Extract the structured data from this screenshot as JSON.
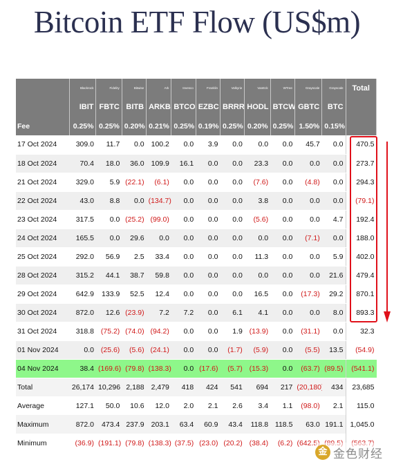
{
  "title": "Bitcoin ETF Flow (US$m)",
  "columns": [
    {
      "issuer": "Blackrock",
      "ticker": "IBIT",
      "fee": "0.25%"
    },
    {
      "issuer": "Fidelity",
      "ticker": "FBTC",
      "fee": "0.25%"
    },
    {
      "issuer": "Bitwise",
      "ticker": "BITB",
      "fee": "0.20%"
    },
    {
      "issuer": "Ark",
      "ticker": "ARKB",
      "fee": "0.21%"
    },
    {
      "issuer": "Invesco",
      "ticker": "BTCO",
      "fee": "0.25%"
    },
    {
      "issuer": "Franklin",
      "ticker": "EZBC",
      "fee": "0.19%"
    },
    {
      "issuer": "Valkyrie",
      "ticker": "BRRR",
      "fee": "0.25%"
    },
    {
      "issuer": "VanEck",
      "ticker": "HODL",
      "fee": "0.20%"
    },
    {
      "issuer": "WTree",
      "ticker": "BTCW",
      "fee": "0.25%"
    },
    {
      "issuer": "Grayscale",
      "ticker": "GBTC",
      "fee": "1.50%"
    },
    {
      "issuer": "Grayscale",
      "ticker": "BTC",
      "fee": "0.15%"
    }
  ],
  "total_header": "Total",
  "fee_label": "Fee",
  "rows": [
    {
      "date": "17 Oct 2024",
      "values": [
        "309.0",
        "11.7",
        "0.0",
        "100.2",
        "0.0",
        "3.9",
        "0.0",
        "0.0",
        "0.0",
        "45.7",
        "0.0"
      ],
      "total": "470.5"
    },
    {
      "date": "18 Oct 2024",
      "values": [
        "70.4",
        "18.0",
        "36.0",
        "109.9",
        "16.1",
        "0.0",
        "0.0",
        "23.3",
        "0.0",
        "0.0",
        "0.0"
      ],
      "total": "273.7"
    },
    {
      "date": "21 Oct 2024",
      "values": [
        "329.0",
        "5.9",
        "(22.1)",
        "(6.1)",
        "0.0",
        "0.0",
        "0.0",
        "(7.6)",
        "0.0",
        "(4.8)",
        "0.0"
      ],
      "total": "294.3"
    },
    {
      "date": "22 Oct 2024",
      "values": [
        "43.0",
        "8.8",
        "0.0",
        "(134.7)",
        "0.0",
        "0.0",
        "0.0",
        "3.8",
        "0.0",
        "0.0",
        "0.0"
      ],
      "total": "(79.1)"
    },
    {
      "date": "23 Oct 2024",
      "values": [
        "317.5",
        "0.0",
        "(25.2)",
        "(99.0)",
        "0.0",
        "0.0",
        "0.0",
        "(5.6)",
        "0.0",
        "0.0",
        "4.7"
      ],
      "total": "192.4"
    },
    {
      "date": "24 Oct 2024",
      "values": [
        "165.5",
        "0.0",
        "29.6",
        "0.0",
        "0.0",
        "0.0",
        "0.0",
        "0.0",
        "0.0",
        "(7.1)",
        "0.0"
      ],
      "total": "188.0"
    },
    {
      "date": "25 Oct 2024",
      "values": [
        "292.0",
        "56.9",
        "2.5",
        "33.4",
        "0.0",
        "0.0",
        "0.0",
        "11.3",
        "0.0",
        "0.0",
        "5.9"
      ],
      "total": "402.0"
    },
    {
      "date": "28 Oct 2024",
      "values": [
        "315.2",
        "44.1",
        "38.7",
        "59.8",
        "0.0",
        "0.0",
        "0.0",
        "0.0",
        "0.0",
        "0.0",
        "21.6"
      ],
      "total": "479.4"
    },
    {
      "date": "29 Oct 2024",
      "values": [
        "642.9",
        "133.9",
        "52.5",
        "12.4",
        "0.0",
        "0.0",
        "0.0",
        "16.5",
        "0.0",
        "(17.3)",
        "29.2"
      ],
      "total": "870.1"
    },
    {
      "date": "30 Oct 2024",
      "values": [
        "872.0",
        "12.6",
        "(23.9)",
        "7.2",
        "7.2",
        "0.0",
        "6.1",
        "4.1",
        "0.0",
        "0.0",
        "8.0"
      ],
      "total": "893.3"
    },
    {
      "date": "31 Oct 2024",
      "values": [
        "318.8",
        "(75.2)",
        "(74.0)",
        "(94.2)",
        "0.0",
        "0.0",
        "1.9",
        "(13.9)",
        "0.0",
        "(31.1)",
        "0.0"
      ],
      "total": "32.3"
    },
    {
      "date": "01 Nov 2024",
      "values": [
        "0.0",
        "(25.6)",
        "(5.6)",
        "(24.1)",
        "0.0",
        "0.0",
        "(1.7)",
        "(5.9)",
        "0.0",
        "(5.5)",
        "13.5"
      ],
      "total": "(54.9)"
    },
    {
      "date": "04 Nov 2024",
      "values": [
        "38.4",
        "(169.6)",
        "(79.8)",
        "(138.3)",
        "0.0",
        "(17.6)",
        "(5.7)",
        "(15.3)",
        "0.0",
        "(63.7)",
        "(89.5)"
      ],
      "total": "(541.1)",
      "highlight": true
    }
  ],
  "summary": [
    {
      "label": "Total",
      "values": [
        "26,174",
        "10,296",
        "2,188",
        "2,479",
        "418",
        "424",
        "541",
        "694",
        "217",
        "(20,180)",
        "434"
      ],
      "total": "23,685"
    },
    {
      "label": "Average",
      "values": [
        "127.1",
        "50.0",
        "10.6",
        "12.0",
        "2.0",
        "2.1",
        "2.6",
        "3.4",
        "1.1",
        "(98.0)",
        "2.1"
      ],
      "total": "115.0"
    },
    {
      "label": "Maximum",
      "values": [
        "872.0",
        "473.4",
        "237.9",
        "203.1",
        "63.4",
        "60.9",
        "43.4",
        "118.8",
        "118.5",
        "63.0",
        "191.1"
      ],
      "total": "1,045.0"
    },
    {
      "label": "Minimum",
      "values": [
        "(36.9)",
        "(191.1)",
        "(79.8)",
        "(138.3)",
        "(37.5)",
        "(23.0)",
        "(20.2)",
        "(38.4)",
        "(6.2)",
        "(642.5)",
        "(89.5)"
      ],
      "total": "(563.7)"
    }
  ],
  "colors": {
    "header_bg": "#7c7c7c",
    "highlight_row": "#8ef78a",
    "negative": "#d01818",
    "annotation": "#e0101a"
  },
  "watermark": {
    "text": "金色财经",
    "logo_glyph": "金"
  }
}
